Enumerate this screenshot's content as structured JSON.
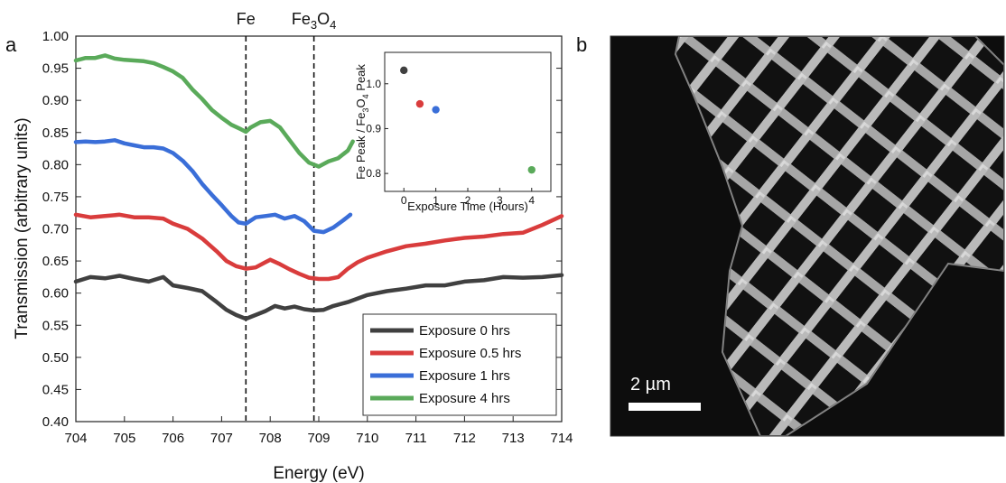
{
  "panels": {
    "a_label": "a",
    "b_label": "b"
  },
  "chart_data": [
    {
      "type": "line",
      "title": "",
      "xlabel": "Energy (eV)",
      "ylabel": "Transmission (arbitrary units)",
      "xlim": [
        704,
        714
      ],
      "ylim": [
        0.4,
        1.0
      ],
      "x_ticks": [
        "704",
        "705",
        "706",
        "707",
        "708",
        "709",
        "710",
        "711",
        "712",
        "713",
        "714"
      ],
      "y_ticks": [
        "0.40",
        "0.45",
        "0.50",
        "0.55",
        "0.60",
        "0.65",
        "0.70",
        "0.75",
        "0.80",
        "0.85",
        "0.90",
        "0.95",
        "1.00"
      ],
      "grid": false,
      "legend_position": "bottom-right",
      "reference_lines": [
        {
          "x": 707.5,
          "label": "Fe"
        },
        {
          "x": 708.9,
          "label_base": "Fe",
          "label_sub1": "3",
          "label_mid": "O",
          "label_sub2": "4"
        }
      ],
      "series": [
        {
          "name": "Exposure 0 hrs",
          "color": "#404040",
          "points": [
            [
              704.0,
              0.618
            ],
            [
              704.3,
              0.625
            ],
            [
              704.6,
              0.623
            ],
            [
              704.9,
              0.627
            ],
            [
              705.2,
              0.622
            ],
            [
              705.5,
              0.618
            ],
            [
              705.8,
              0.625
            ],
            [
              706.0,
              0.612
            ],
            [
              706.3,
              0.608
            ],
            [
              706.6,
              0.603
            ],
            [
              706.9,
              0.586
            ],
            [
              707.1,
              0.574
            ],
            [
              707.3,
              0.566
            ],
            [
              707.5,
              0.56
            ],
            [
              707.7,
              0.566
            ],
            [
              707.9,
              0.572
            ],
            [
              708.1,
              0.58
            ],
            [
              708.3,
              0.576
            ],
            [
              708.5,
              0.579
            ],
            [
              708.7,
              0.575
            ],
            [
              708.9,
              0.573
            ],
            [
              709.1,
              0.574
            ],
            [
              709.3,
              0.58
            ],
            [
              709.6,
              0.586
            ],
            [
              710.0,
              0.597
            ],
            [
              710.4,
              0.603
            ],
            [
              710.8,
              0.607
            ],
            [
              711.2,
              0.612
            ],
            [
              711.6,
              0.612
            ],
            [
              712.0,
              0.618
            ],
            [
              712.4,
              0.62
            ],
            [
              712.8,
              0.625
            ],
            [
              713.2,
              0.624
            ],
            [
              713.6,
              0.625
            ],
            [
              714.0,
              0.628
            ]
          ]
        },
        {
          "name": "Exposure 0.5 hrs",
          "color": "#d93c3c",
          "points": [
            [
              704.0,
              0.722
            ],
            [
              704.3,
              0.718
            ],
            [
              704.6,
              0.72
            ],
            [
              704.9,
              0.722
            ],
            [
              705.2,
              0.718
            ],
            [
              705.5,
              0.718
            ],
            [
              705.8,
              0.716
            ],
            [
              706.0,
              0.708
            ],
            [
              706.3,
              0.7
            ],
            [
              706.6,
              0.685
            ],
            [
              706.9,
              0.665
            ],
            [
              707.1,
              0.65
            ],
            [
              707.3,
              0.642
            ],
            [
              707.5,
              0.638
            ],
            [
              707.7,
              0.64
            ],
            [
              707.9,
              0.648
            ],
            [
              708.0,
              0.652
            ],
            [
              708.2,
              0.645
            ],
            [
              708.4,
              0.637
            ],
            [
              708.6,
              0.63
            ],
            [
              708.8,
              0.624
            ],
            [
              709.0,
              0.622
            ],
            [
              709.2,
              0.622
            ],
            [
              709.4,
              0.625
            ],
            [
              709.6,
              0.638
            ],
            [
              709.8,
              0.648
            ],
            [
              710.0,
              0.655
            ],
            [
              710.4,
              0.665
            ],
            [
              710.8,
              0.673
            ],
            [
              711.2,
              0.677
            ],
            [
              711.6,
              0.682
            ],
            [
              712.0,
              0.686
            ],
            [
              712.4,
              0.688
            ],
            [
              712.8,
              0.692
            ],
            [
              713.2,
              0.694
            ],
            [
              713.6,
              0.706
            ],
            [
              714.0,
              0.72
            ]
          ]
        },
        {
          "name": "Exposure 1 hrs",
          "color": "#3a6ed8",
          "points": [
            [
              704.0,
              0.835
            ],
            [
              704.2,
              0.836
            ],
            [
              704.4,
              0.835
            ],
            [
              704.6,
              0.836
            ],
            [
              704.8,
              0.838
            ],
            [
              705.0,
              0.833
            ],
            [
              705.2,
              0.83
            ],
            [
              705.4,
              0.827
            ],
            [
              705.6,
              0.827
            ],
            [
              705.8,
              0.825
            ],
            [
              706.0,
              0.818
            ],
            [
              706.2,
              0.806
            ],
            [
              706.4,
              0.79
            ],
            [
              706.6,
              0.77
            ],
            [
              706.8,
              0.753
            ],
            [
              707.0,
              0.737
            ],
            [
              707.2,
              0.72
            ],
            [
              707.35,
              0.71
            ],
            [
              707.5,
              0.708
            ],
            [
              707.7,
              0.718
            ],
            [
              707.9,
              0.72
            ],
            [
              708.1,
              0.722
            ],
            [
              708.3,
              0.716
            ],
            [
              708.5,
              0.72
            ],
            [
              708.7,
              0.712
            ],
            [
              708.9,
              0.697
            ],
            [
              709.1,
              0.695
            ],
            [
              709.3,
              0.702
            ],
            [
              709.5,
              0.713
            ],
            [
              709.65,
              0.722
            ]
          ]
        },
        {
          "name": "Exposure 4 hrs",
          "color": "#5aaa5a",
          "points": [
            [
              704.0,
              0.962
            ],
            [
              704.2,
              0.966
            ],
            [
              704.4,
              0.966
            ],
            [
              704.6,
              0.97
            ],
            [
              704.8,
              0.965
            ],
            [
              705.0,
              0.963
            ],
            [
              705.2,
              0.962
            ],
            [
              705.4,
              0.961
            ],
            [
              705.6,
              0.958
            ],
            [
              705.8,
              0.952
            ],
            [
              706.0,
              0.945
            ],
            [
              706.2,
              0.935
            ],
            [
              706.4,
              0.917
            ],
            [
              706.6,
              0.902
            ],
            [
              706.8,
              0.885
            ],
            [
              707.0,
              0.873
            ],
            [
              707.2,
              0.862
            ],
            [
              707.4,
              0.855
            ],
            [
              707.5,
              0.851
            ],
            [
              707.6,
              0.858
            ],
            [
              707.8,
              0.866
            ],
            [
              708.0,
              0.868
            ],
            [
              708.2,
              0.858
            ],
            [
              708.4,
              0.838
            ],
            [
              708.6,
              0.818
            ],
            [
              708.8,
              0.803
            ],
            [
              708.9,
              0.8
            ],
            [
              709.0,
              0.797
            ],
            [
              709.2,
              0.805
            ],
            [
              709.4,
              0.81
            ],
            [
              709.6,
              0.822
            ],
            [
              709.7,
              0.836
            ]
          ]
        }
      ]
    },
    {
      "type": "scatter",
      "title": "",
      "xlabel": "Exposure Time (Hours)",
      "ylabel_parts": {
        "a": "Fe Peak / Fe",
        "sub1": "3",
        "b": "O",
        "sub2": "4",
        "c": " Peak"
      },
      "xlim": [
        -0.6,
        4.6
      ],
      "ylim": [
        0.76,
        1.07
      ],
      "x_ticks": [
        "0",
        "1",
        "2",
        "3",
        "4"
      ],
      "y_ticks": [
        "0.8",
        "0.9",
        "1.0"
      ],
      "grid": false,
      "points": [
        {
          "x": 0,
          "y": 1.03,
          "color": "#404040"
        },
        {
          "x": 0.5,
          "y": 0.955,
          "color": "#d93c3c"
        },
        {
          "x": 1,
          "y": 0.942,
          "color": "#3a6ed8"
        },
        {
          "x": 4,
          "y": 0.808,
          "color": "#5aaa5a"
        }
      ]
    }
  ],
  "micrograph": {
    "scale_bar_label": "2 µm"
  }
}
